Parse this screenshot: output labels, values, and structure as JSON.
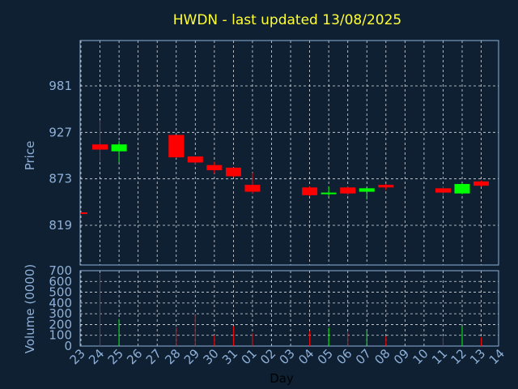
{
  "chart_data": {
    "type": "candlestick",
    "title": "HWDN - last updated 13/08/2025",
    "xlabel": "Day",
    "price_panel": {
      "ylabel": "Price",
      "yticks": [
        981,
        927,
        873,
        819
      ],
      "ylim": [
        800,
        1000
      ]
    },
    "volume_panel": {
      "ylabel": "Volume (0000)",
      "yticks": [
        0,
        100,
        200,
        300,
        400,
        500,
        600,
        700
      ],
      "ylim": [
        0,
        700
      ]
    },
    "x_tick_labels": [
      "23",
      "24",
      "25",
      "26",
      "27",
      "28",
      "29",
      "30",
      "31",
      "01",
      "02",
      "03",
      "04",
      "05",
      "06",
      "07",
      "08",
      "09",
      "10",
      "11",
      "12",
      "13",
      "14"
    ],
    "candles": [
      {
        "day": "23",
        "open": 834,
        "high": 834,
        "low": 833,
        "close": 833,
        "volume": 0,
        "direction": "down"
      },
      {
        "day": "24",
        "open": 913,
        "high": 941,
        "low": 893,
        "close": 907,
        "volume": 670,
        "direction": "down"
      },
      {
        "day": "25",
        "open": 905,
        "high": 917,
        "low": 892,
        "close": 913,
        "volume": 250,
        "direction": "up"
      },
      {
        "day": "28",
        "open": 924,
        "high": 924,
        "low": 897,
        "close": 898,
        "volume": 175,
        "direction": "down"
      },
      {
        "day": "29",
        "open": 899,
        "high": 899,
        "low": 890,
        "close": 892,
        "volume": 290,
        "direction": "down"
      },
      {
        "day": "30",
        "open": 889,
        "high": 893,
        "low": 879,
        "close": 883,
        "volume": 100,
        "direction": "down"
      },
      {
        "day": "31",
        "open": 886,
        "high": 886,
        "low": 875,
        "close": 876,
        "volume": 185,
        "direction": "down"
      },
      {
        "day": "01",
        "open": 866,
        "high": 880,
        "low": 856,
        "close": 858,
        "volume": 120,
        "direction": "down"
      },
      {
        "day": "04",
        "open": 863,
        "high": 864,
        "low": 853,
        "close": 854,
        "volume": 140,
        "direction": "down"
      },
      {
        "day": "05",
        "open": 856,
        "high": 864,
        "low": 853,
        "close": 857,
        "volume": 170,
        "direction": "up"
      },
      {
        "day": "06",
        "open": 863,
        "high": 864,
        "low": 854,
        "close": 856,
        "volume": 130,
        "direction": "down"
      },
      {
        "day": "07",
        "open": 858,
        "high": 863,
        "low": 849,
        "close": 862,
        "volume": 140,
        "direction": "up"
      },
      {
        "day": "08",
        "open": 866,
        "high": 867,
        "low": 860,
        "close": 863,
        "volume": 90,
        "direction": "down"
      },
      {
        "day": "11",
        "open": 862,
        "high": 864,
        "low": 853,
        "close": 857,
        "volume": 80,
        "direction": "down"
      },
      {
        "day": "12",
        "open": 856,
        "high": 868,
        "low": 855,
        "close": 867,
        "volume": 185,
        "direction": "up"
      },
      {
        "day": "13",
        "open": 870,
        "high": 871,
        "low": 864,
        "close": 865,
        "volume": 80,
        "direction": "down"
      }
    ],
    "colors": {
      "up": "#00ff00",
      "down": "#ff0000",
      "background": "#0f2033",
      "title": "#ffff33",
      "axis_text": "#8fb0d8",
      "grid": "#ffffff"
    },
    "grid": true
  }
}
